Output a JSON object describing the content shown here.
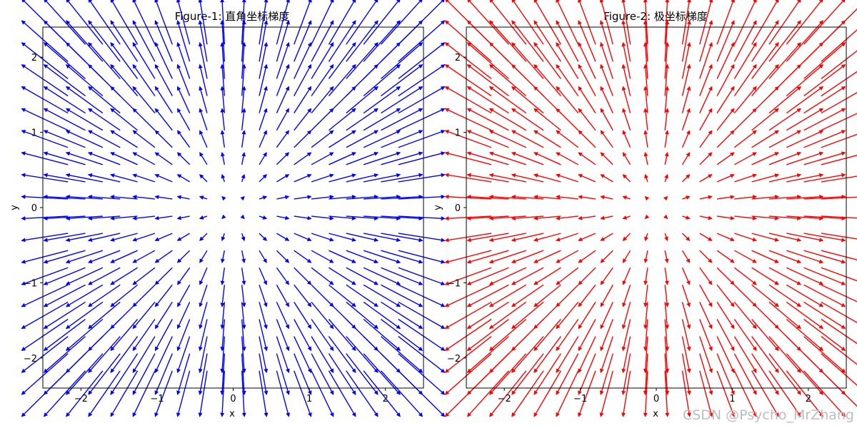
{
  "chart_data": [
    {
      "type": "quiver",
      "title": "Figure-1: 直角坐标梯度",
      "xlabel": "x",
      "ylabel": "y",
      "xlim": [
        -2.5,
        2.5
      ],
      "ylim": [
        -2.4,
        2.4
      ],
      "xticks": [
        -2,
        -1,
        0,
        1,
        2
      ],
      "yticks": [
        -2,
        -1,
        0,
        1,
        2
      ],
      "xtick_labels": [
        "−2",
        "−1",
        "0",
        "1",
        "2"
      ],
      "ytick_labels": [
        "−2",
        "−1",
        "0",
        "1",
        "2"
      ],
      "grid": false,
      "color": "#0000ff",
      "field": "gradient of r² = x² + y² (vector ∝ (x, y))",
      "grid_range": [
        -2.17,
        2.17
      ],
      "grid_count": 20
    },
    {
      "type": "quiver",
      "title": "Figure-2: 极坐标梯度",
      "xlabel": "x",
      "ylabel": "y",
      "xlim": [
        -2.5,
        2.5
      ],
      "ylim": [
        -2.4,
        2.4
      ],
      "xticks": [
        -2,
        -1,
        0,
        1,
        2
      ],
      "yticks": [
        -2,
        -1,
        0,
        1,
        2
      ],
      "xtick_labels": [
        "−2",
        "−1",
        "0",
        "1",
        "2"
      ],
      "ytick_labels": [
        "−2",
        "−1",
        "0",
        "1",
        "2"
      ],
      "grid": false,
      "color": "#ff0000",
      "field": "gradient of r² = x² + y² (vector ∝ (x, y))",
      "grid_range": [
        -2.17,
        2.17
      ],
      "grid_count": 20
    }
  ],
  "watermark": "CSDN @Psycho_MrZhang"
}
